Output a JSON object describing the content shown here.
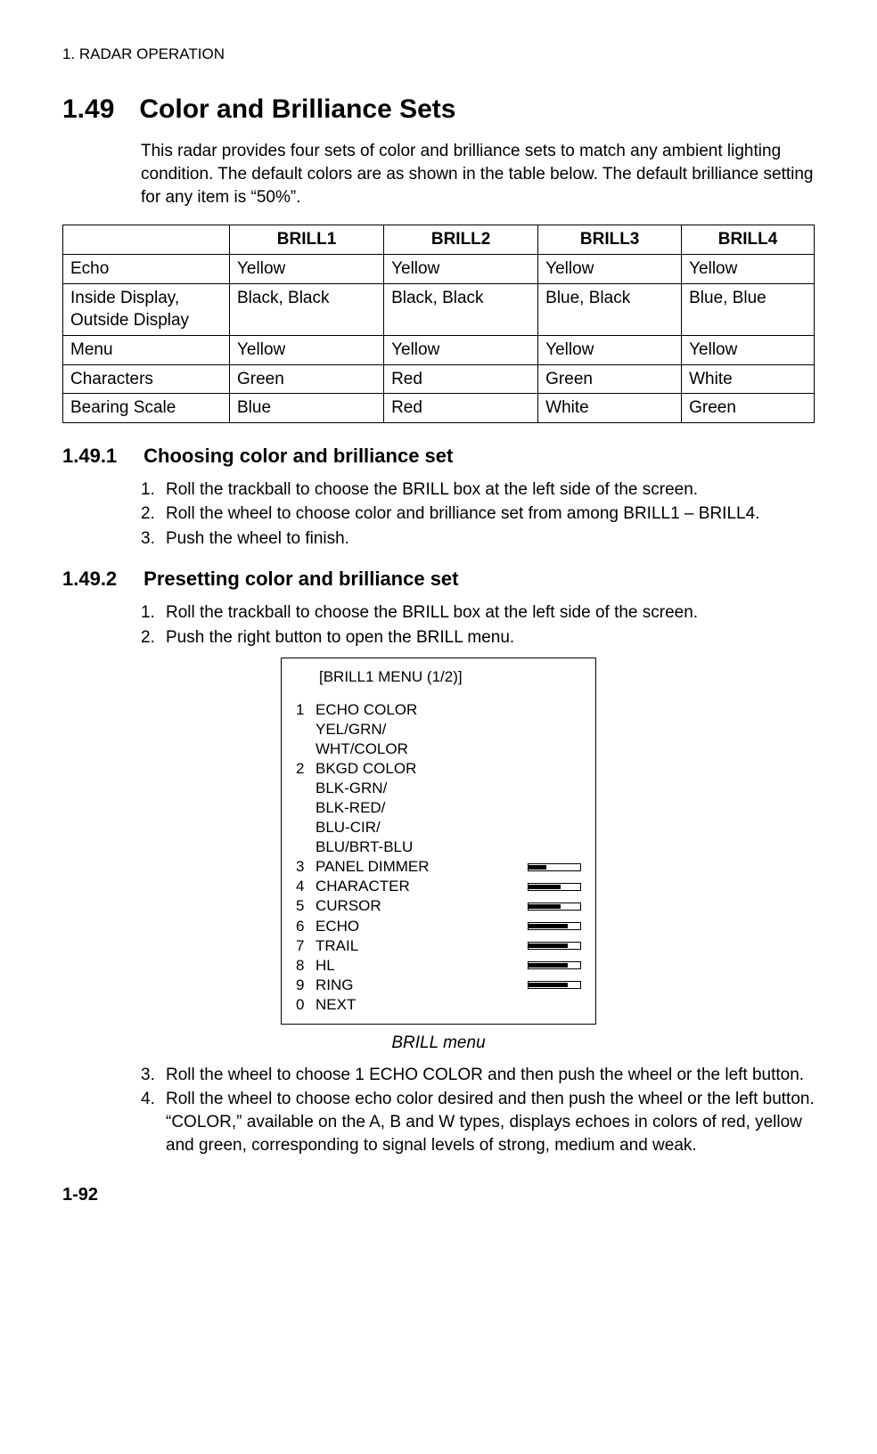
{
  "page_header": "1. RADAR OPERATION",
  "section": {
    "number": "1.49",
    "title": "Color and Brilliance Sets",
    "intro": "This radar provides four sets of color and brilliance sets to match any ambient lighting condition. The default colors are as shown in the table below. The default brilliance setting for any item is “50%”."
  },
  "table": {
    "columns": [
      "",
      "BRILL1",
      "BRILL2",
      "BRILL3",
      "BRILL4"
    ],
    "rows": [
      [
        "Echo",
        "Yellow",
        "Yellow",
        "Yellow",
        "Yellow"
      ],
      [
        "Inside Display, Outside Display",
        "Black, Black",
        "Black, Black",
        "Blue, Black",
        "Blue, Blue"
      ],
      [
        "Menu",
        "Yellow",
        "Yellow",
        "Yellow",
        "Yellow"
      ],
      [
        "Characters",
        "Green",
        "Red",
        "Green",
        "White"
      ],
      [
        "Bearing Scale",
        "Blue",
        "Red",
        "White",
        "Green"
      ]
    ]
  },
  "sub1": {
    "number": "1.49.1",
    "title": "Choosing color and brilliance set",
    "steps": [
      {
        "n": "1.",
        "t": "Roll the trackball to choose the BRILL box at the left side of the screen."
      },
      {
        "n": "2.",
        "t": "Roll the wheel to choose color and brilliance set from among BRILL1 – BRILL4."
      },
      {
        "n": "3.",
        "t": "Push the wheel to finish."
      }
    ]
  },
  "sub2": {
    "number": "1.49.2",
    "title": "Presetting color and brilliance set",
    "steps_a": [
      {
        "n": "1.",
        "t": "Roll the trackball to choose the BRILL box at the left side of the screen."
      },
      {
        "n": "2.",
        "t": "Push the right button to open the BRILL menu."
      }
    ],
    "steps_b": [
      {
        "n": "3.",
        "t": "Roll the wheel to choose 1 ECHO COLOR and then push the wheel or the left button."
      },
      {
        "n": "4.",
        "t": "Roll the wheel to choose echo color desired and then push the wheel or the left button. “COLOR,” available on the A, B and W types, displays echoes in colors of red, yellow and green, corresponding to signal levels of strong, medium and weak."
      }
    ]
  },
  "menu": {
    "title": "[BRILL1 MENU (1/2)]",
    "items": [
      {
        "k": "1",
        "label": "ECHO COLOR",
        "subs": [
          "YEL/GRN/",
          "WHT/COLOR"
        ],
        "bar": false
      },
      {
        "k": "2",
        "label": "BKGD COLOR",
        "subs": [
          "BLK-GRN/",
          "BLK-RED/",
          "BLU-CIR/",
          "BLU/BRT-BLU"
        ],
        "bar": false
      },
      {
        "k": "3",
        "label": "PANEL DIMMER",
        "bar": true,
        "fill": 20
      },
      {
        "k": "4",
        "label": "CHARACTER",
        "bar": true,
        "fill": 36
      },
      {
        "k": "5",
        "label": "CURSOR",
        "bar": true,
        "fill": 36
      },
      {
        "k": "6",
        "label": "ECHO",
        "bar": true,
        "fill": 44
      },
      {
        "k": "7",
        "label": "TRAIL",
        "bar": true,
        "fill": 44
      },
      {
        "k": "8",
        "label": "HL",
        "bar": true,
        "fill": 44
      },
      {
        "k": "9",
        "label": "RING",
        "bar": true,
        "fill": 44
      },
      {
        "k": "0",
        "label": "NEXT",
        "bar": false
      }
    ],
    "caption": "BRILL menu"
  },
  "page_footer": "1-92"
}
